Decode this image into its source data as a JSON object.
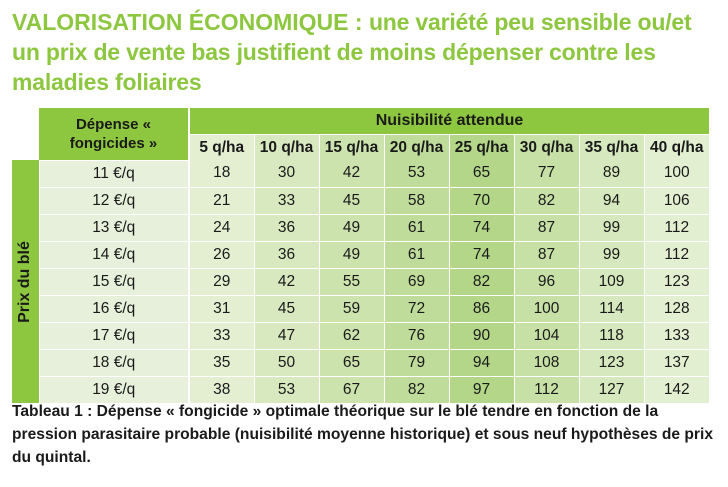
{
  "headline": {
    "prefix": "VALORISATION ÉCONOMIQUE : ",
    "text": "une variété peu sensible ou/et un prix de vente bas justifient de moins dépenser contre les maladies foliaires"
  },
  "table": {
    "corner_header": "Dépense « fongicides »",
    "group_header": "Nuisibilité attendue",
    "side_header": "Prix du blé",
    "columns": [
      "5 q/ha",
      "10 q/ha",
      "15 q/ha",
      "20 q/ha",
      "25 q/ha",
      "30 q/ha",
      "35 q/ha",
      "40 q/ha"
    ],
    "rows": [
      {
        "label": "11 €/q",
        "values": [
          "18",
          "30",
          "42",
          "53",
          "65",
          "77",
          "89",
          "100"
        ]
      },
      {
        "label": "12 €/q",
        "values": [
          "21",
          "33",
          "45",
          "58",
          "70",
          "82",
          "94",
          "106"
        ]
      },
      {
        "label": "13 €/q",
        "values": [
          "24",
          "36",
          "49",
          "61",
          "74",
          "87",
          "99",
          "112"
        ]
      },
      {
        "label": "14 €/q",
        "values": [
          "26",
          "36",
          "49",
          "61",
          "74",
          "87",
          "99",
          "112"
        ]
      },
      {
        "label": "15 €/q",
        "values": [
          "29",
          "42",
          "55",
          "69",
          "82",
          "96",
          "109",
          "123"
        ]
      },
      {
        "label": "16 €/q",
        "values": [
          "31",
          "45",
          "59",
          "72",
          "86",
          "100",
          "114",
          "128"
        ]
      },
      {
        "label": "17 €/q",
        "values": [
          "33",
          "47",
          "62",
          "76",
          "90",
          "104",
          "118",
          "133"
        ]
      },
      {
        "label": "18 €/q",
        "values": [
          "35",
          "50",
          "65",
          "79",
          "94",
          "108",
          "123",
          "137"
        ]
      },
      {
        "label": "19 €/q",
        "values": [
          "38",
          "53",
          "67",
          "82",
          "97",
          "112",
          "127",
          "142"
        ]
      }
    ]
  },
  "caption": "Tableau 1 : Dépense « fongicide » optimale théorique sur le blé tendre en fonction de la pression parasitaire probable (nuisibilité moyenne historique) et sous neuf hypothèses de prix du quintal.",
  "colors": {
    "accent": "#8dc63f",
    "column_shades": [
      "#e4efd2",
      "#d8e9c0",
      "#cce3ae",
      "#bfdc9b",
      "#b3d689",
      "#c6e0a6",
      "#d6e8bd",
      "#e3efd1"
    ],
    "row_label_shade": "#e7f0da",
    "text": "#1a1a1a"
  }
}
